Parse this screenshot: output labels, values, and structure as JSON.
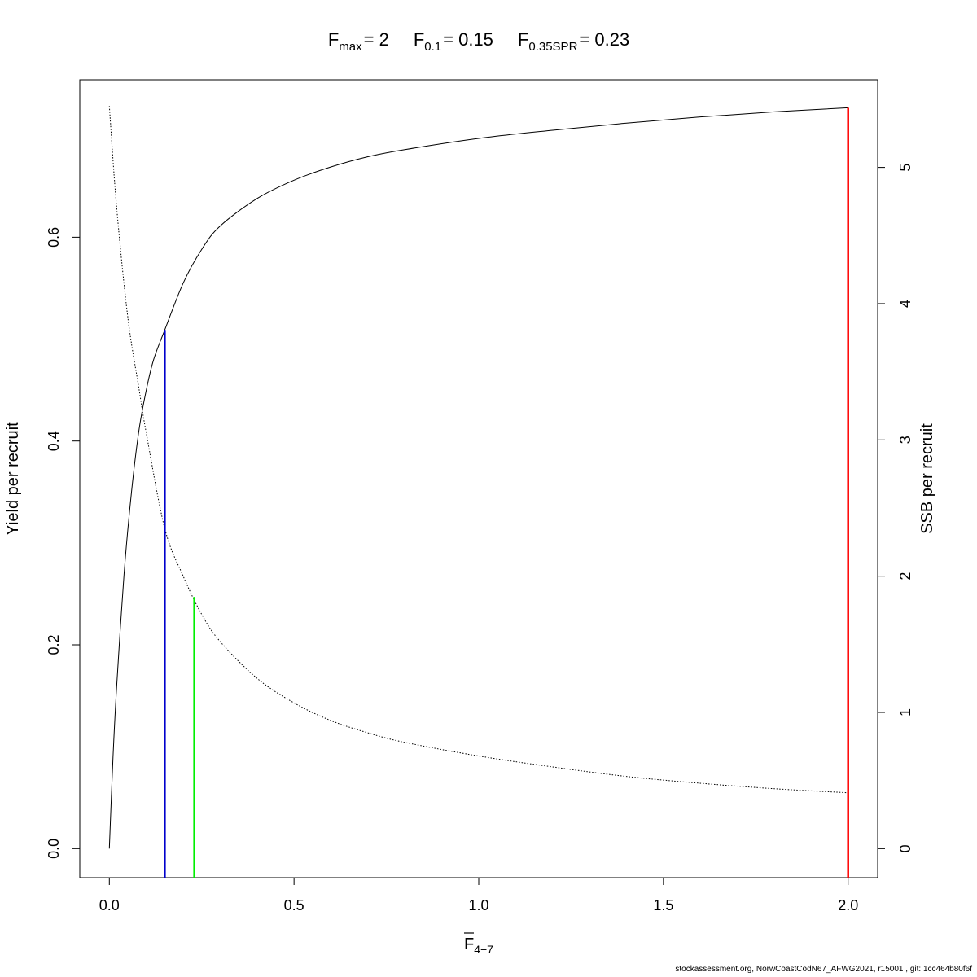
{
  "chart_data": {
    "type": "line",
    "title": {
      "fmax_base": "F",
      "fmax_sub": "max",
      "fmax_val": "= 2",
      "f01_base": "F",
      "f01_sub": "0.1",
      "f01_val": "= 0.15",
      "fspr_base": "F",
      "fspr_sub": "0.35SPR",
      "fspr_val": "= 0.23"
    },
    "xlabel": {
      "base": "F",
      "sub": "4−7"
    },
    "ylabel_left": "Yield per recruit",
    "ylabel_right": "SSB per recruit",
    "xlim": [
      -0.08,
      2.08
    ],
    "ylim_left": [
      -0.0285,
      0.7545
    ],
    "ylim_right": [
      -0.213,
      5.643
    ],
    "x_ticks": [
      0.0,
      0.5,
      1.0,
      1.5,
      2.0
    ],
    "x_tick_labels": [
      "0.0",
      "0.5",
      "1.0",
      "1.5",
      "2.0"
    ],
    "y_left_ticks": [
      0.0,
      0.2,
      0.4,
      0.6
    ],
    "y_left_tick_labels": [
      "0.0",
      "0.2",
      "0.4",
      "0.6"
    ],
    "y_right_ticks": [
      0,
      1,
      2,
      3,
      4,
      5
    ],
    "y_right_tick_labels": [
      "0",
      "1",
      "2",
      "3",
      "4",
      "5"
    ],
    "series": [
      {
        "axis": "left",
        "style": "solid",
        "color": "#000000",
        "x": [
          0,
          0.01,
          0.02,
          0.04,
          0.06,
          0.08,
          0.1,
          0.12,
          0.15,
          0.2,
          0.25,
          0.3,
          0.4,
          0.5,
          0.6,
          0.7,
          0.8,
          1.0,
          1.2,
          1.4,
          1.6,
          1.8,
          2.0
        ],
        "y": [
          0.0,
          0.09,
          0.16,
          0.27,
          0.35,
          0.41,
          0.45,
          0.48,
          0.509,
          0.555,
          0.588,
          0.611,
          0.638,
          0.656,
          0.669,
          0.679,
          0.686,
          0.697,
          0.705,
          0.712,
          0.718,
          0.723,
          0.727
        ]
      },
      {
        "axis": "right",
        "style": "dotted",
        "color": "#000000",
        "x": [
          0,
          0.02,
          0.05,
          0.08,
          0.1,
          0.15,
          0.2,
          0.25,
          0.3,
          0.4,
          0.5,
          0.6,
          0.7,
          0.8,
          1.0,
          1.2,
          1.4,
          1.6,
          1.8,
          2.0
        ],
        "y": [
          5.45,
          4.7,
          3.9,
          3.38,
          3.05,
          2.35,
          2.0,
          1.72,
          1.52,
          1.25,
          1.07,
          0.94,
          0.85,
          0.78,
          0.68,
          0.6,
          0.53,
          0.48,
          0.44,
          0.41
        ]
      }
    ],
    "reference_lines": [
      {
        "name": "Fmax",
        "x": 2.0,
        "y_top": 0.727,
        "color": "#ff0000"
      },
      {
        "name": "F0.1",
        "x": 0.15,
        "y_top": 0.509,
        "color": "#0000cc"
      },
      {
        "name": "F0.35SPR",
        "x": 0.23,
        "y_top": 0.247,
        "color": "#00ee00"
      }
    ]
  },
  "footer": "stockassessment.org, NorwCoastCodN67_AFWG2021, r15001 , git: 1cc464b80f6f"
}
